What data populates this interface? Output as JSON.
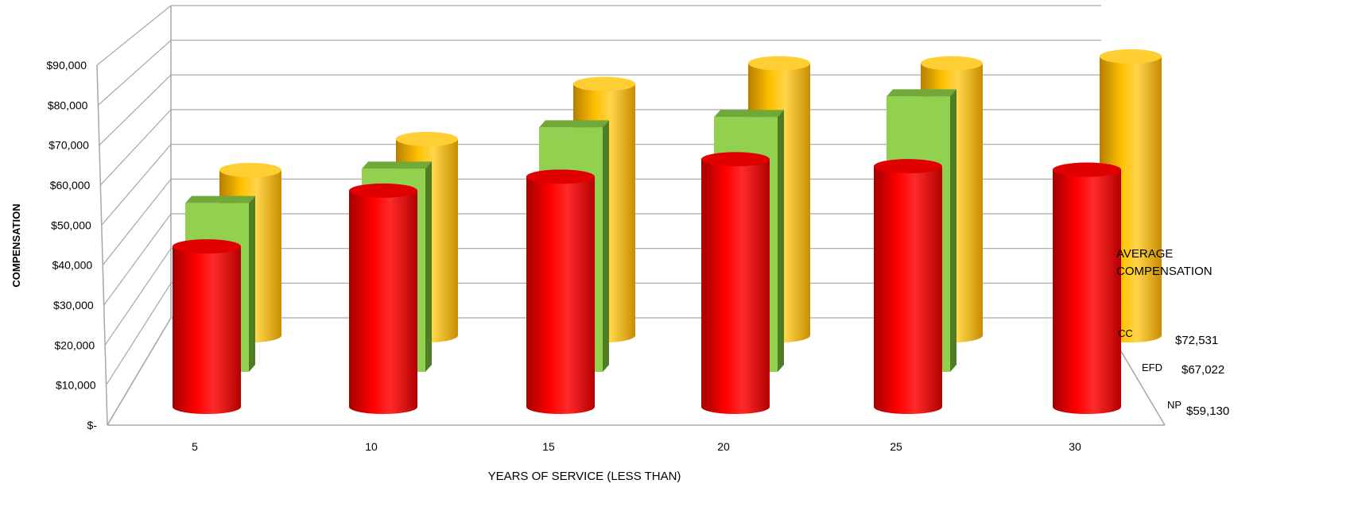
{
  "chart_data": {
    "type": "bar",
    "style": "3d-cylinder",
    "xlabel": "YEARS OF SERVICE (LESS THAN)",
    "ylabel": "COMPENSATION",
    "ylim": [
      0,
      90000
    ],
    "y_ticks": [
      "$-",
      "$10,000",
      "$20,000",
      "$30,000",
      "$40,000",
      "$50,000",
      "$60,000",
      "$70,000",
      "$80,000",
      "$90,000"
    ],
    "categories": [
      "5",
      "10",
      "15",
      "20",
      "25",
      "30"
    ],
    "series": [
      {
        "name": "CC",
        "shape": "cylinder",
        "color": "#ffc000",
        "values": [
          48000,
          57000,
          73000,
          79000,
          79000,
          81000
        ]
      },
      {
        "name": "EFD",
        "shape": "box",
        "color": "#92d050",
        "values": [
          49000,
          59000,
          71000,
          74000,
          80000,
          null
        ]
      },
      {
        "name": "NP",
        "shape": "cylinder",
        "color": "#ff0000",
        "values": [
          46000,
          62000,
          66000,
          71000,
          69000,
          68000
        ]
      }
    ],
    "legend_title": [
      "AVERAGE",
      "COMPENSATION"
    ],
    "averages": [
      {
        "series": "CC",
        "value": "$72,531"
      },
      {
        "series": "EFD",
        "value": "$67,022"
      },
      {
        "series": "NP",
        "value": "$59,130"
      }
    ],
    "grid": true,
    "legend_position": "right"
  }
}
